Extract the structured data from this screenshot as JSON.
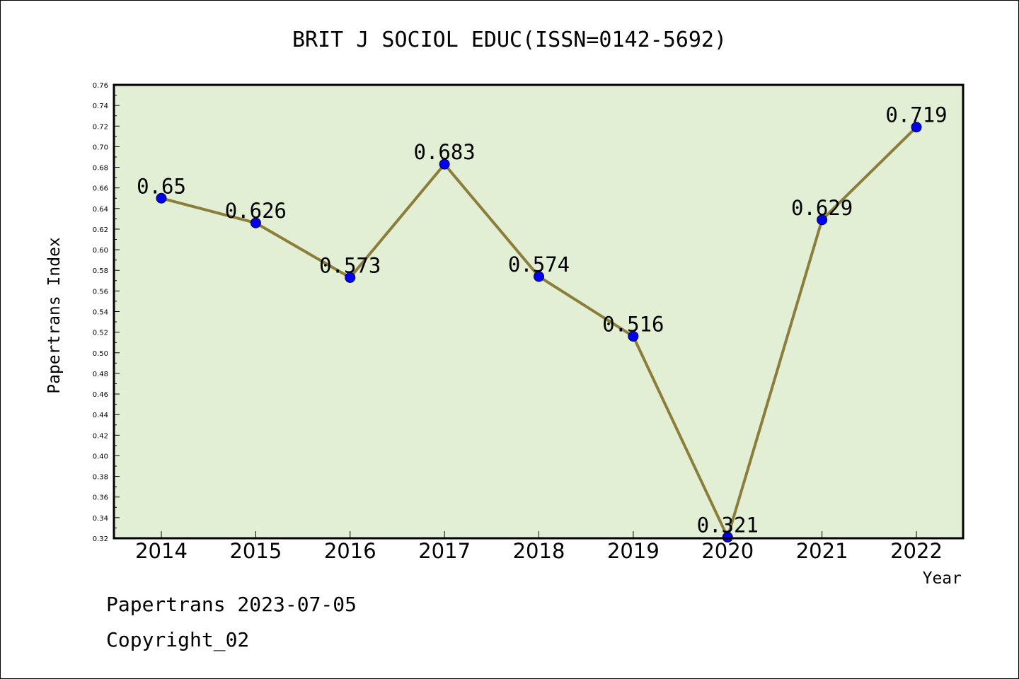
{
  "chart_data": {
    "type": "line",
    "title": "BRIT J SOCIOL EDUC(ISSN=0142-5692)",
    "xlabel": "Year",
    "ylabel": "Papertrans Index",
    "categories": [
      "2014",
      "2015",
      "2016",
      "2017",
      "2018",
      "2019",
      "2020",
      "2021",
      "2022"
    ],
    "series": [
      {
        "values": [
          0.65,
          0.626,
          0.573,
          0.683,
          0.574,
          0.516,
          0.321,
          0.629,
          0.719
        ],
        "labels": [
          "0.65",
          "0.626",
          "0.573",
          "0.683",
          "0.574",
          "0.516",
          "0.321",
          "0.629",
          "0.719"
        ]
      }
    ],
    "ylim": [
      0.32,
      0.76
    ],
    "yticks": [
      "0.32",
      "0.34",
      "0.36",
      "0.38",
      "0.40",
      "0.42",
      "0.44",
      "0.46",
      "0.48",
      "0.50",
      "0.52",
      "0.54",
      "0.56",
      "0.58",
      "0.60",
      "0.62",
      "0.64",
      "0.66",
      "0.68",
      "0.70",
      "0.72",
      "0.74",
      "0.76"
    ],
    "grid": false,
    "colors": {
      "plot_background": "#e2efd5",
      "line": "#8b7d3a",
      "marker": "#0000ee"
    }
  },
  "footer": {
    "line1": "Papertrans 2023-07-05",
    "line2": "Copyright_02"
  }
}
